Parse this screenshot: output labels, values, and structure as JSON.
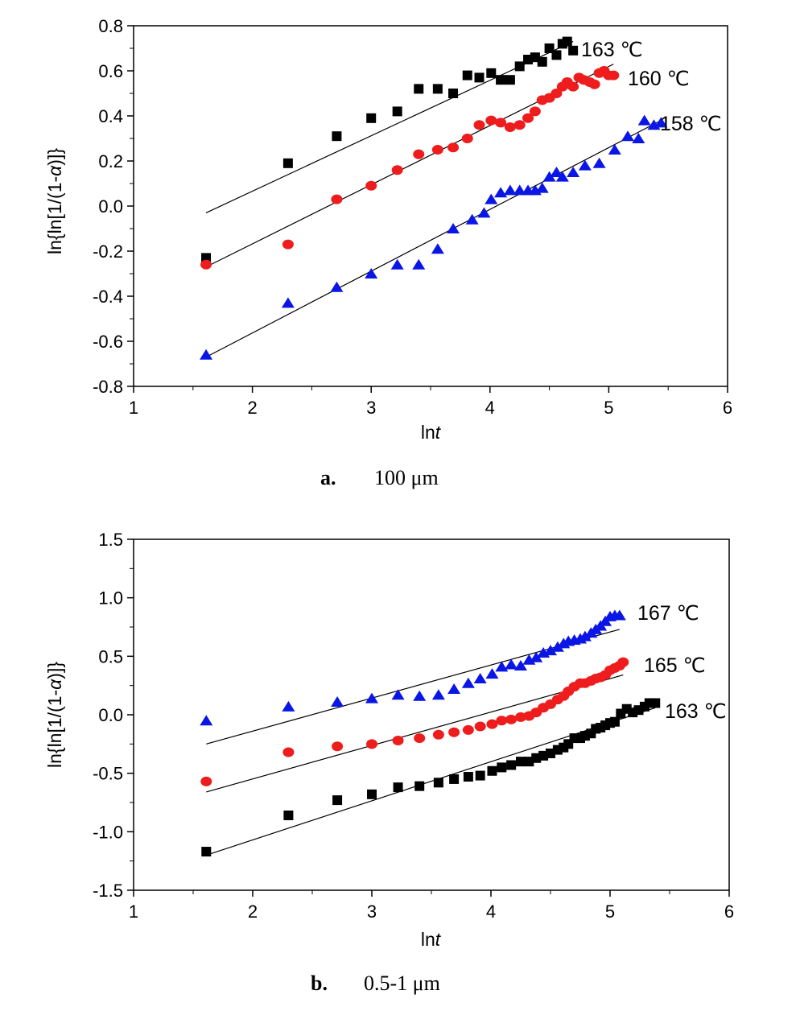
{
  "chart_data": [
    {
      "type": "scatter",
      "caption_letter": "a.",
      "caption_text": "100 μm",
      "xlabel": "lnt",
      "ylabel": "ln{ln[1/(1-α)]}",
      "xlim": [
        1,
        6
      ],
      "ylim": [
        -0.8,
        0.8
      ],
      "xticks": [
        1,
        2,
        3,
        4,
        5,
        6
      ],
      "yticks": [
        -0.8,
        -0.6,
        -0.4,
        -0.2,
        0.0,
        0.2,
        0.4,
        0.6,
        0.8
      ],
      "ytick_labels": [
        "-0.8",
        "-0.6",
        "-0.4",
        "-0.2",
        "0.0",
        "0.2",
        "0.4",
        "0.6",
        "0.8"
      ],
      "grid": false,
      "series": [
        {
          "name": "163 ℃",
          "marker": "square",
          "color": "#000000",
          "x": [
            1.61,
            2.3,
            2.71,
            3.0,
            3.22,
            3.4,
            3.56,
            3.69,
            3.81,
            3.91,
            4.01,
            4.09,
            4.17,
            4.25,
            4.32,
            4.38,
            4.44,
            4.5,
            4.56,
            4.61,
            4.65,
            4.7
          ],
          "y": [
            -0.23,
            0.19,
            0.31,
            0.39,
            0.42,
            0.52,
            0.52,
            0.5,
            0.58,
            0.57,
            0.59,
            0.56,
            0.56,
            0.62,
            0.65,
            0.66,
            0.64,
            0.7,
            0.67,
            0.72,
            0.73,
            0.69
          ],
          "fit": [
            [
              1.61,
              -0.03
            ],
            [
              4.7,
              0.73
            ]
          ]
        },
        {
          "name": "160 ℃",
          "marker": "circle",
          "color": "#ee1c1c",
          "x": [
            1.61,
            2.3,
            2.71,
            3.0,
            3.22,
            3.4,
            3.56,
            3.69,
            3.81,
            3.91,
            4.01,
            4.09,
            4.17,
            4.25,
            4.32,
            4.38,
            4.44,
            4.5,
            4.56,
            4.61,
            4.65,
            4.7,
            4.75,
            4.79,
            4.84,
            4.88,
            4.92,
            4.96,
            5.0,
            5.04
          ],
          "y": [
            -0.26,
            -0.17,
            0.03,
            0.09,
            0.16,
            0.23,
            0.25,
            0.26,
            0.3,
            0.36,
            0.38,
            0.37,
            0.35,
            0.36,
            0.39,
            0.42,
            0.47,
            0.48,
            0.5,
            0.53,
            0.55,
            0.53,
            0.57,
            0.56,
            0.55,
            0.54,
            0.59,
            0.6,
            0.58,
            0.58
          ],
          "fit": [
            [
              1.61,
              -0.27
            ],
            [
              5.04,
              0.63
            ]
          ]
        },
        {
          "name": "158 ℃",
          "marker": "triangle",
          "color": "#0a16e6",
          "x": [
            1.61,
            2.3,
            2.71,
            3.0,
            3.22,
            3.4,
            3.56,
            3.69,
            3.85,
            3.95,
            4.01,
            4.09,
            4.17,
            4.25,
            4.32,
            4.38,
            4.44,
            4.5,
            4.56,
            4.61,
            4.7,
            4.8,
            4.92,
            5.05,
            5.16,
            5.25,
            5.3,
            5.38,
            5.44
          ],
          "y": [
            -0.66,
            -0.43,
            -0.36,
            -0.3,
            -0.26,
            -0.26,
            -0.19,
            -0.1,
            -0.06,
            -0.03,
            0.03,
            0.06,
            0.07,
            0.07,
            0.07,
            0.07,
            0.08,
            0.13,
            0.15,
            0.13,
            0.15,
            0.18,
            0.19,
            0.25,
            0.31,
            0.3,
            0.38,
            0.36,
            0.37
          ],
          "fit": [
            [
              1.61,
              -0.67
            ],
            [
              5.44,
              0.38
            ]
          ]
        }
      ]
    },
    {
      "type": "scatter",
      "caption_letter": "b.",
      "caption_text": "0.5-1 μm",
      "xlabel": "lnt",
      "ylabel": "ln{ln[1/(1-α)]}",
      "xlim": [
        1,
        6
      ],
      "ylim": [
        -1.5,
        1.5
      ],
      "xticks": [
        1,
        2,
        3,
        4,
        5,
        6
      ],
      "yticks": [
        -1.5,
        -1.0,
        -0.5,
        0.0,
        0.5,
        1.0,
        1.5
      ],
      "ytick_labels": [
        "-1.5",
        "-1.0",
        "-0.5",
        "0.0",
        "0.5",
        "1.0",
        "1.5"
      ],
      "grid": false,
      "series": [
        {
          "name": "167 ℃",
          "marker": "triangle",
          "color": "#0a16e6",
          "x": [
            1.61,
            2.3,
            2.71,
            3.0,
            3.22,
            3.4,
            3.56,
            3.69,
            3.81,
            3.91,
            4.01,
            4.09,
            4.17,
            4.25,
            4.32,
            4.38,
            4.44,
            4.5,
            4.56,
            4.61,
            4.65,
            4.7,
            4.75,
            4.79,
            4.84,
            4.88,
            4.92,
            4.96,
            5.0,
            5.04,
            5.08
          ],
          "y": [
            -0.05,
            0.07,
            0.11,
            0.14,
            0.17,
            0.16,
            0.17,
            0.22,
            0.27,
            0.31,
            0.35,
            0.41,
            0.43,
            0.42,
            0.47,
            0.49,
            0.53,
            0.55,
            0.58,
            0.61,
            0.63,
            0.64,
            0.65,
            0.67,
            0.7,
            0.73,
            0.76,
            0.8,
            0.84,
            0.85,
            0.85
          ],
          "fit": [
            [
              1.61,
              -0.25
            ],
            [
              5.08,
              0.73
            ]
          ]
        },
        {
          "name": "165 ℃",
          "marker": "circle",
          "color": "#ee1c1c",
          "x": [
            1.61,
            2.3,
            2.71,
            3.0,
            3.22,
            3.4,
            3.56,
            3.69,
            3.81,
            3.91,
            4.01,
            4.09,
            4.17,
            4.25,
            4.32,
            4.38,
            4.44,
            4.5,
            4.56,
            4.61,
            4.65,
            4.7,
            4.75,
            4.79,
            4.84,
            4.88,
            4.92,
            4.96,
            5.0,
            5.04,
            5.08,
            5.11
          ],
          "y": [
            -0.57,
            -0.32,
            -0.27,
            -0.25,
            -0.22,
            -0.2,
            -0.17,
            -0.15,
            -0.13,
            -0.1,
            -0.08,
            -0.05,
            -0.04,
            -0.02,
            -0.01,
            0.02,
            0.06,
            0.09,
            0.13,
            0.16,
            0.2,
            0.24,
            0.27,
            0.27,
            0.29,
            0.31,
            0.32,
            0.34,
            0.38,
            0.4,
            0.42,
            0.45
          ],
          "fit": [
            [
              1.61,
              -0.66
            ],
            [
              5.11,
              0.34
            ]
          ]
        },
        {
          "name": "163 ℃",
          "marker": "square",
          "color": "#000000",
          "x": [
            1.61,
            2.3,
            2.71,
            3.0,
            3.22,
            3.4,
            3.56,
            3.69,
            3.81,
            3.91,
            4.01,
            4.09,
            4.17,
            4.25,
            4.32,
            4.38,
            4.44,
            4.5,
            4.56,
            4.61,
            4.65,
            4.7,
            4.75,
            4.79,
            4.84,
            4.88,
            4.92,
            4.96,
            5.0,
            5.04,
            5.09,
            5.14,
            5.19,
            5.24,
            5.29,
            5.33,
            5.38
          ],
          "y": [
            -1.17,
            -0.86,
            -0.73,
            -0.68,
            -0.62,
            -0.61,
            -0.58,
            -0.55,
            -0.53,
            -0.52,
            -0.48,
            -0.45,
            -0.43,
            -0.4,
            -0.4,
            -0.37,
            -0.35,
            -0.33,
            -0.3,
            -0.28,
            -0.25,
            -0.2,
            -0.2,
            -0.18,
            -0.16,
            -0.12,
            -0.11,
            -0.09,
            -0.07,
            -0.06,
            0.01,
            0.05,
            0.02,
            0.04,
            0.07,
            0.1,
            0.1
          ],
          "fit": [
            [
              1.61,
              -1.2
            ],
            [
              5.38,
              0.06
            ]
          ]
        }
      ]
    }
  ]
}
